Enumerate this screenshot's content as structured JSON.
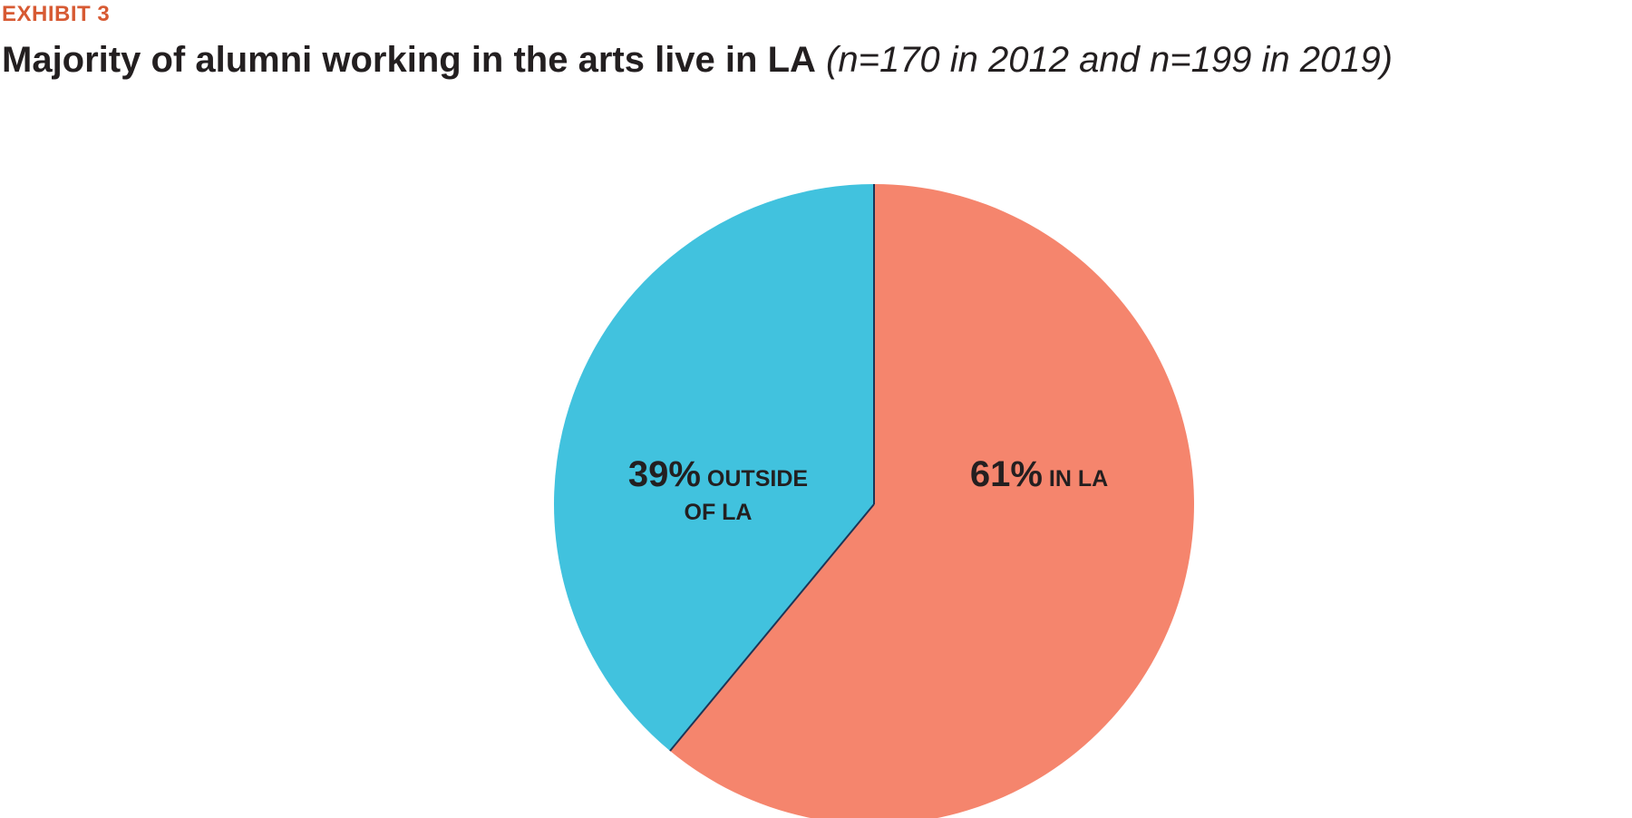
{
  "header": {
    "exhibit": "EXHIBIT 3",
    "title_main": "Majority of alumni working in the arts live in LA",
    "title_note": "(n=170 in 2012 and n=199 in 2019)"
  },
  "colors": {
    "exhibit_accent": "#d75a33",
    "in_la": "#f5856d",
    "outside_la": "#41c2de",
    "divider": "#1d3557"
  },
  "chart_data": {
    "type": "pie",
    "title": "Majority of alumni working in the arts live in LA",
    "subtitle": "(n=170 in 2012 and n=199 in 2019)",
    "slices": [
      {
        "label": "IN LA",
        "pct_text": "61%",
        "value": 61,
        "color": "#f5856d"
      },
      {
        "label": "OUTSIDE OF LA",
        "pct_text": "39%",
        "value": 39,
        "color": "#41c2de"
      }
    ],
    "start": "top",
    "direction": "clockwise"
  },
  "labels": {
    "in_la": {
      "pct": "61%",
      "line1": " IN LA"
    },
    "outside": {
      "pct": "39%",
      "line1": " OUTSIDE",
      "line2": "OF LA"
    }
  }
}
